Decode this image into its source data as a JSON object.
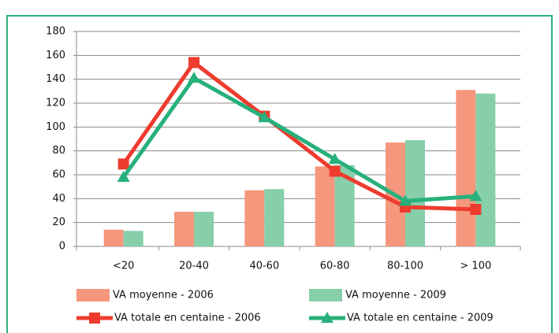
{
  "chart_data": {
    "type": "bar",
    "categories": [
      "<20",
      "20-40",
      "40-60",
      "60-80",
      "80-100",
      "> 100"
    ],
    "series": [
      {
        "name": "VA moyenne - 2006",
        "type": "bar",
        "color": "#f4977d",
        "values": [
          14,
          29,
          47,
          67,
          87,
          131
        ]
      },
      {
        "name": "VA moyenne - 2009",
        "type": "bar",
        "color": "#86cfa9",
        "values": [
          13,
          29,
          48,
          68,
          89,
          128
        ]
      },
      {
        "name": "VA totale en centaine - 2006",
        "type": "line",
        "marker": "square",
        "color": "#ee3b2e",
        "values": [
          69,
          154,
          109,
          63,
          33,
          31
        ]
      },
      {
        "name": "VA totale en centaine - 2009",
        "type": "line",
        "marker": "triangle",
        "color": "#27b07b",
        "values": [
          58,
          141,
          108,
          73,
          38,
          42
        ]
      }
    ],
    "ylim": [
      0,
      180
    ],
    "yticks": [
      0,
      20,
      40,
      60,
      80,
      100,
      120,
      140,
      160,
      180
    ],
    "grid": true
  }
}
